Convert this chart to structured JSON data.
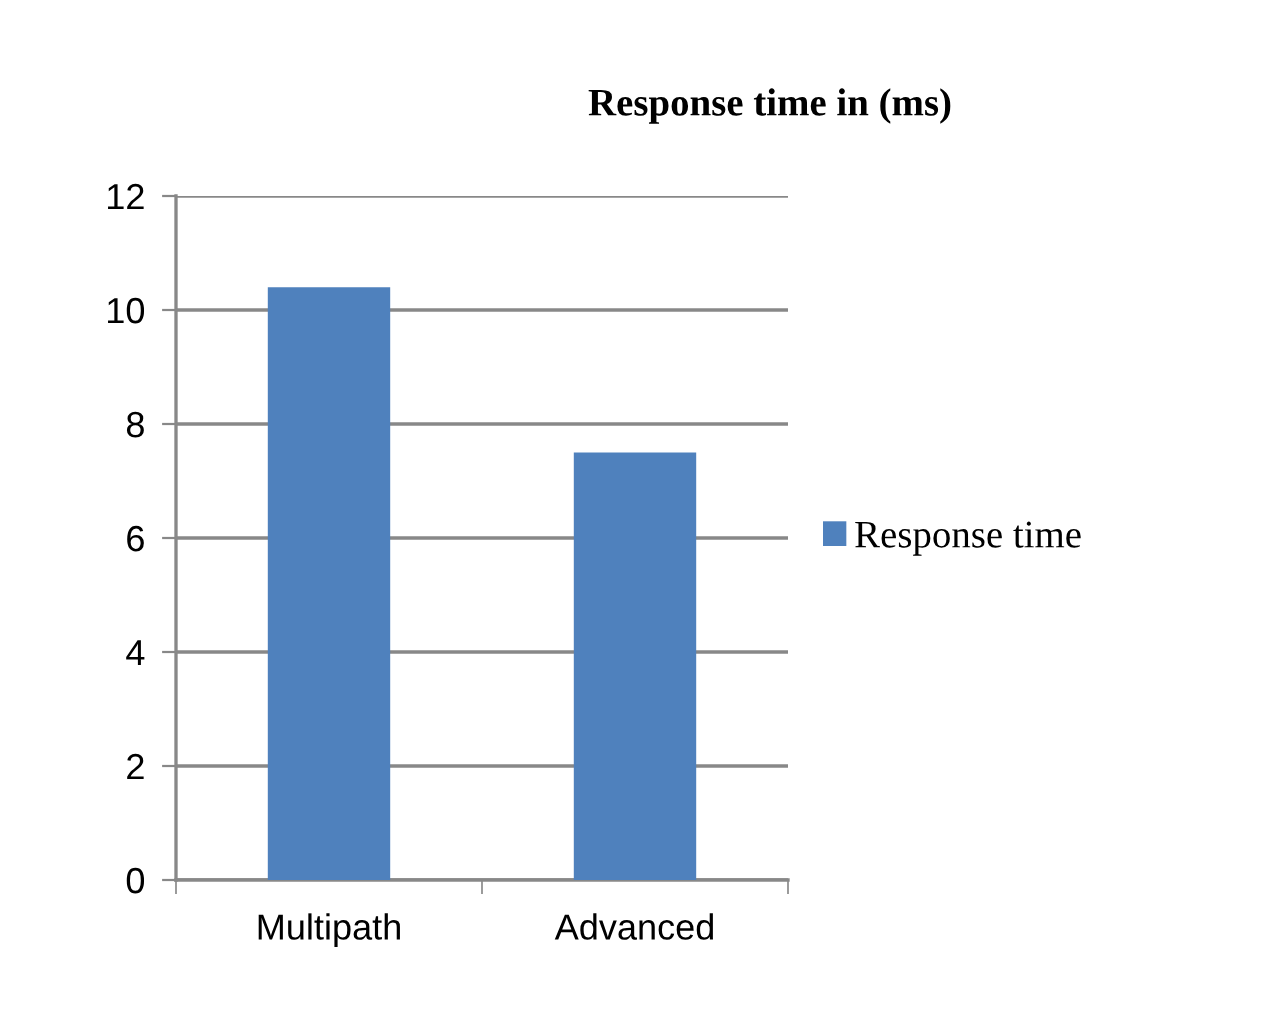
{
  "chart_data": {
    "type": "bar",
    "title": "Response time in (ms)",
    "categories": [
      "Multipath",
      "Advanced"
    ],
    "series": [
      {
        "name": "Response time",
        "color": "#4f81bd",
        "values": [
          10.4,
          7.5
        ]
      }
    ],
    "ylim": [
      0,
      12
    ],
    "yticks": [
      0,
      2,
      4,
      6,
      8,
      10,
      12
    ],
    "grid": "y",
    "legend": "right"
  }
}
